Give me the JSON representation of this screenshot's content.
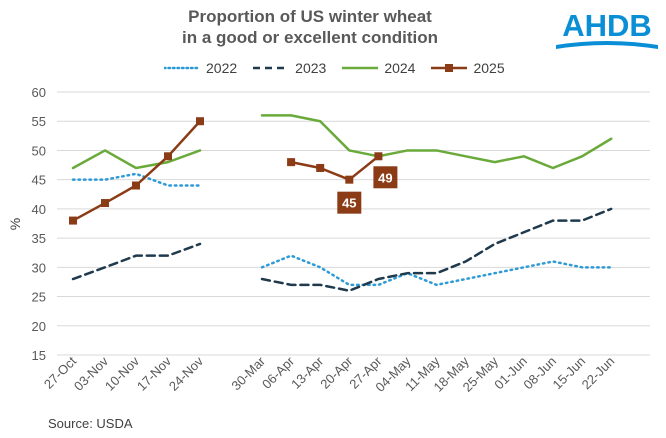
{
  "logo": {
    "text": "AHDB",
    "color": "#0a8fd6"
  },
  "source": "Source: USDA",
  "chart_data": {
    "type": "line",
    "title": "Proportion of US winter wheat in a good or excellent condition",
    "title_lines": [
      "Proportion of US winter wheat",
      "in a good or excellent condition"
    ],
    "xlabel": "",
    "ylabel": "%",
    "ylim": [
      15,
      60
    ],
    "yticks": [
      15,
      20,
      25,
      30,
      35,
      40,
      45,
      50,
      55,
      60
    ],
    "grid": true,
    "legend_position": "top",
    "categories": [
      "27-Oct",
      "03-Nov",
      "10-Nov",
      "17-Nov",
      "24-Nov",
      "30-Mar",
      "06-Apr",
      "13-Apr",
      "20-Apr",
      "27-Apr",
      "04-May",
      "11-May",
      "18-May",
      "25-May",
      "01-Jun",
      "08-Jun",
      "15-Jun",
      "22-Jun"
    ],
    "gap_after_index": 4,
    "series": [
      {
        "name": "2022",
        "color": "#2e9bd6",
        "dash": "dot",
        "values": [
          45,
          45,
          46,
          44,
          44,
          30,
          32,
          30,
          27,
          27,
          29,
          27,
          28,
          29,
          30,
          31,
          30,
          30
        ]
      },
      {
        "name": "2023",
        "color": "#1f3a4d",
        "dash": "dash",
        "values": [
          28,
          30,
          32,
          32,
          34,
          28,
          27,
          27,
          26,
          28,
          29,
          29,
          31,
          34,
          36,
          38,
          38,
          40
        ]
      },
      {
        "name": "2024",
        "color": "#6aaa3a",
        "dash": "solid",
        "values": [
          47,
          50,
          47,
          48,
          50,
          56,
          56,
          55,
          50,
          49,
          50,
          50,
          49,
          48,
          49,
          47,
          49,
          52
        ]
      },
      {
        "name": "2025",
        "color": "#8b3b16",
        "dash": "solid",
        "marker": "square",
        "values": [
          38,
          41,
          44,
          49,
          55,
          null,
          48,
          47,
          45,
          49,
          null,
          null,
          null,
          null,
          null,
          null,
          null,
          null
        ]
      }
    ],
    "annotations": [
      {
        "series": "2025",
        "category": "20-Apr",
        "value": 45,
        "text": "45",
        "placement": "below"
      },
      {
        "series": "2025",
        "category": "27-Apr",
        "value": 49,
        "text": "49",
        "placement": "below-right"
      }
    ]
  }
}
